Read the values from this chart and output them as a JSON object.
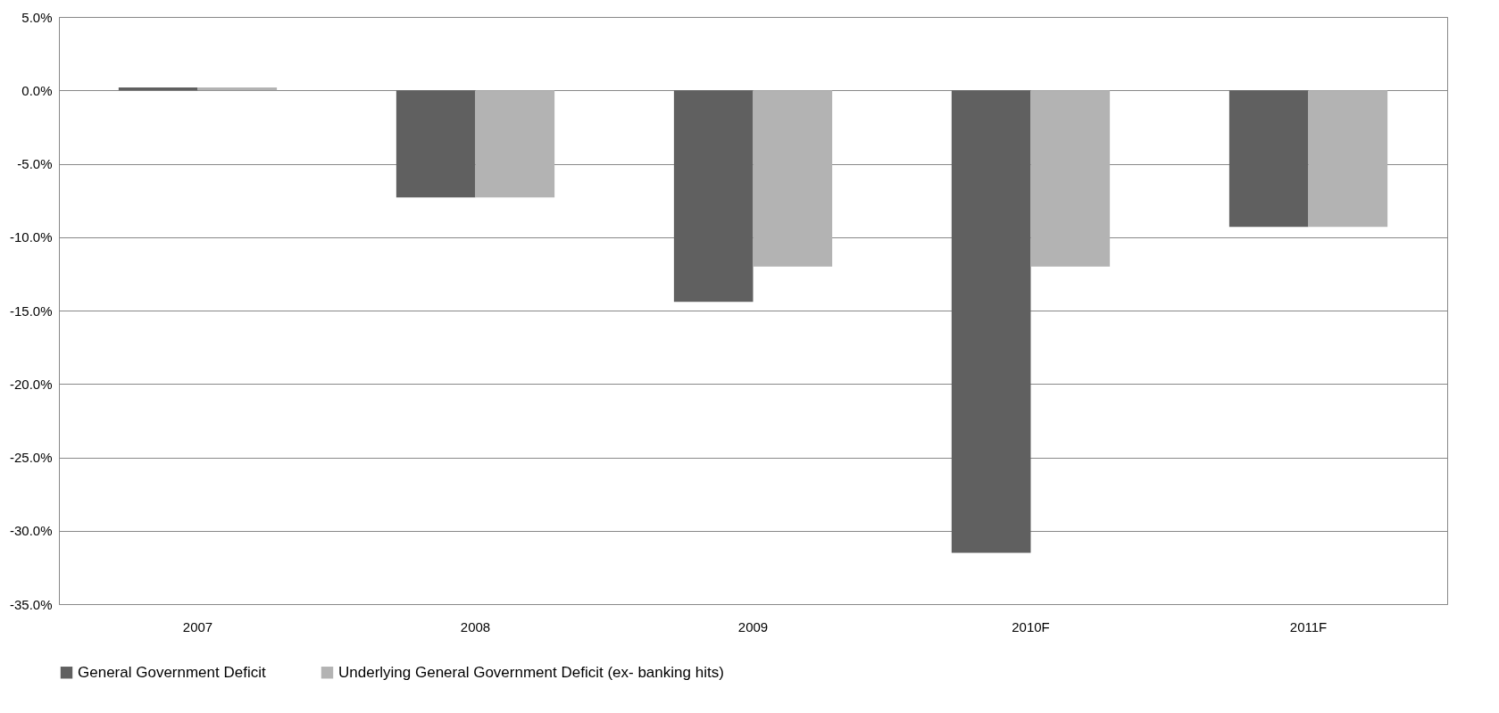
{
  "chart_data": {
    "type": "bar",
    "categories": [
      "2007",
      "2008",
      "2009",
      "2010F",
      "2011F"
    ],
    "series": [
      {
        "name": "General Government Deficit",
        "color": "#606060",
        "values": [
          0.2,
          -7.3,
          -14.4,
          -31.5,
          -9.3
        ]
      },
      {
        "name": "Underlying General Government Deficit (ex- banking hits)",
        "color": "#b3b3b3",
        "values": [
          0.2,
          -7.3,
          -12.0,
          -12.0,
          -9.3
        ]
      }
    ],
    "ylim": [
      -35,
      5
    ],
    "yticks": [
      {
        "value": 5,
        "label": "5.0%"
      },
      {
        "value": 0,
        "label": "0.0%"
      },
      {
        "value": -5,
        "label": "-5.0%"
      },
      {
        "value": -10,
        "label": "-10.0%"
      },
      {
        "value": -15,
        "label": "-15.0%"
      },
      {
        "value": -20,
        "label": "-20.0%"
      },
      {
        "value": -25,
        "label": "-25.0%"
      },
      {
        "value": -30,
        "label": "-30.0%"
      },
      {
        "value": -35,
        "label": "-35.0%"
      }
    ],
    "grid": "y",
    "legend": "bottom"
  }
}
